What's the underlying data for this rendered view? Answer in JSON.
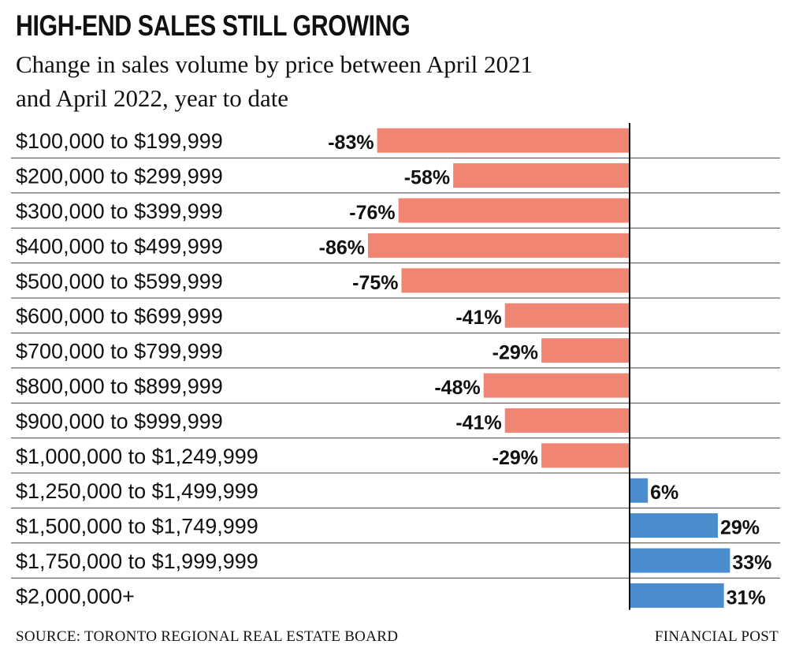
{
  "title": "HIGH-END SALES STILL GROWING",
  "subtitle": "Change in sales volume by price between April 2021 and April 2022, year to date",
  "source": "SOURCE: TORONTO REGIONAL REAL ESTATE BOARD",
  "credit": "FINANCIAL POST",
  "colors": {
    "negative": "#f08573",
    "positive": "#4a8ccc",
    "axis": "#111111",
    "rule": "#444444"
  },
  "chart_data": {
    "type": "bar",
    "orientation": "horizontal",
    "categories": [
      "$100,000 to $199,999",
      "$200,000 to $299,999",
      "$300,000 to $399,999",
      "$400,000 to $499,999",
      "$500,000 to $599,999",
      "$600,000 to $699,999",
      "$700,000 to $799,999",
      "$800,000 to $899,999",
      "$900,000 to $999,999",
      "$1,000,000 to $1,249,999",
      "$1,250,000 to $1,499,999",
      "$1,500,000 to $1,749,999",
      "$1,750,000 to $1,999,999",
      "$2,000,000+"
    ],
    "values": [
      -83,
      -58,
      -76,
      -86,
      -75,
      -41,
      -29,
      -48,
      -41,
      -29,
      6,
      29,
      33,
      31
    ],
    "value_labels": [
      "-83%",
      "-58%",
      "-76%",
      "-86%",
      "-75%",
      "-41%",
      "-29%",
      "-48%",
      "-41%",
      "-29%",
      "6%",
      "29%",
      "33%",
      "31%"
    ],
    "unit": "%",
    "xlim": [
      -86,
      33
    ],
    "grid": false,
    "legend": "none"
  }
}
